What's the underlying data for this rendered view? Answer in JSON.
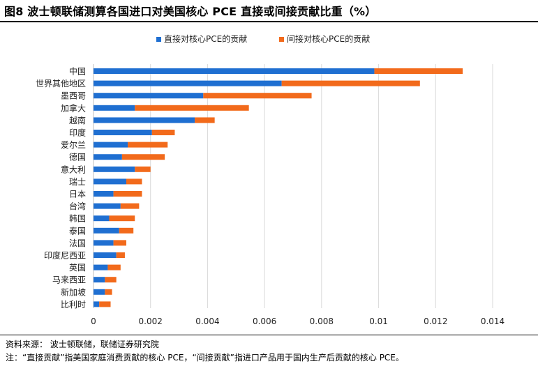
{
  "header": {
    "title": "图8  波士顿联储测算各国进口对美国核心 PCE 直接或间接贡献比重（%）"
  },
  "footer": {
    "source": "资料来源：  波士顿联储，联储证券研究院",
    "note": "注：“直接贡献”指美国家庭消费贡献的核心 PCE，“间接贡献”指进口产品用于国内生产后贡献的核心 PCE。"
  },
  "chart_data": {
    "type": "bar",
    "orientation": "horizontal",
    "stacked": true,
    "categories": [
      "中国",
      "世界其他地区",
      "墨西哥",
      "加拿大",
      "越南",
      "印度",
      "爱尔兰",
      "德国",
      "意大利",
      "瑞士",
      "日本",
      "台湾",
      "韩国",
      "泰国",
      "法国",
      "印度尼西亚",
      "英国",
      "马来西亚",
      "新加坡",
      "比利时"
    ],
    "series": [
      {
        "name": "直接对核心PCE的贡献",
        "color": "#1f6fd1",
        "values": [
          0.00985,
          0.0066,
          0.00385,
          0.00145,
          0.00355,
          0.00205,
          0.0012,
          0.001,
          0.00145,
          0.00115,
          0.0007,
          0.00095,
          0.00055,
          0.0009,
          0.0007,
          0.0008,
          0.0005,
          0.0004,
          0.0004,
          0.0002
        ]
      },
      {
        "name": "间接对核心PCE的贡献",
        "color": "#f26a1b",
        "values": [
          0.0031,
          0.00485,
          0.0038,
          0.004,
          0.0007,
          0.0008,
          0.0014,
          0.0015,
          0.00055,
          0.00055,
          0.001,
          0.00065,
          0.0009,
          0.0005,
          0.00045,
          0.0003,
          0.00045,
          0.0004,
          0.00025,
          0.0004
        ]
      }
    ],
    "xlim": [
      0,
      0.014
    ],
    "xticks": [
      "0",
      "0.002",
      "0.004",
      "0.006",
      "0.008",
      "0.01",
      "0.012",
      "0.014"
    ],
    "xlabel": "",
    "ylabel": "",
    "grid": "vertical",
    "legend": "top-center"
  }
}
